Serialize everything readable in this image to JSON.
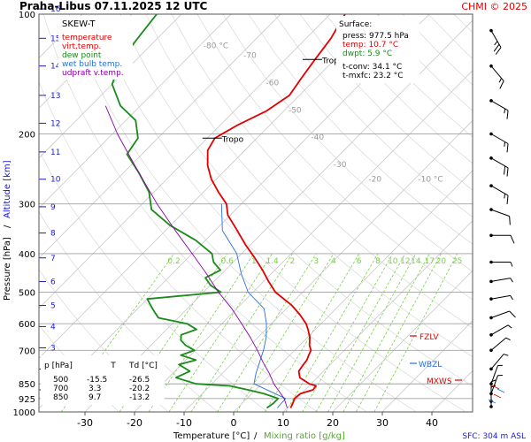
{
  "header": {
    "title": "Praha-Libus    07.11.2025 12 UTC",
    "credit": "CHMI © 2025",
    "legend_title": "SKEW-T"
  },
  "colors": {
    "temperature": "#e00000",
    "dew_point": "#1a8a1a",
    "wet_bulb": "#2a6fd6",
    "updraft": "#8b00a8",
    "isotherm": "#c8c8c8",
    "dry_adiabat": "#d8d8d8",
    "mixing_ratio": "#7bd14a",
    "altitude": "#1a1ad6",
    "grid": "#a0a0a0"
  },
  "legend": [
    {
      "label": "temperature",
      "color": "#e00000"
    },
    {
      "label": "virt.temp.",
      "color": "#e00000"
    },
    {
      "label": "dew point",
      "color": "#1a8a1a"
    },
    {
      "label": "wet bulb temp.",
      "color": "#2a6fd6"
    },
    {
      "label": "udpraft v.temp.",
      "color": "#8b00a8"
    }
  ],
  "surface": {
    "heading": "Surface:",
    "press": "press: 977.5 hPa",
    "temp": "temp: 10.7 °C",
    "dwpt": "dwpt: 5.9 °C",
    "tconv": "t-conv: 34.1 °C",
    "tmxfc": "t-mxfc: 23.2 °C"
  },
  "table": {
    "header": [
      "p [hPa]",
      "T",
      "Td [°C]"
    ],
    "rows": [
      [
        "500",
        "-15.5",
        "-26.5"
      ],
      [
        "700",
        "3.3",
        "-20.2"
      ],
      [
        "850",
        "9.7",
        "-13.2"
      ]
    ]
  },
  "levels": {
    "tropo_label": "Tropo",
    "fzlv": "FZLV",
    "wbzl": "WBZL",
    "mxws": "MXWS"
  },
  "axes": {
    "xlabel": "Temperature [°C]",
    "xlabel_sep": "/",
    "mixing_label": "Mixing ratio [g/kg]",
    "ylabel_pressure": "Pressure [hPa]",
    "ylabel_sep": "/",
    "ylabel_altitude": "Altitude [km]",
    "footer": "SFC: 304 m ASL"
  },
  "chart_data": {
    "type": "line",
    "title": "Praha-Libus 07.11.2025 12 UTC",
    "xlabel": "Temperature [°C] / Mixing ratio [g/kg]",
    "ylabel": "Pressure [hPa] / Altitude [km]",
    "x_ticks": [
      -30,
      -20,
      -10,
      0,
      10,
      20,
      30,
      40
    ],
    "pressure_ticks": [
      100,
      200,
      300,
      400,
      500,
      600,
      700,
      850,
      925,
      1000
    ],
    "altitude_ticks": [
      1,
      2,
      3,
      4,
      5,
      6,
      7,
      8,
      9,
      10,
      11,
      12,
      13,
      14,
      15,
      16
    ],
    "altitude_pressures": [
      880,
      780,
      690,
      610,
      540,
      470,
      410,
      355,
      305,
      260,
      222,
      188,
      160,
      135,
      115,
      97
    ],
    "isotherm_labels": [
      -80,
      -70,
      -60,
      -50,
      -40,
      -30,
      -20,
      -10
    ],
    "mixing_ratio_labels": [
      "0.2",
      "0.6",
      "1",
      "1.4",
      "2",
      "3",
      "4",
      "6",
      "8",
      "10",
      "12",
      "14",
      "17",
      "20",
      "25"
    ],
    "mixing_ratio_values": [
      0.2,
      0.6,
      1,
      1.4,
      2,
      3,
      4,
      6,
      8,
      10,
      12,
      14,
      17,
      20,
      25
    ],
    "tropopause_pressures": [
      130,
      205
    ],
    "series": [
      {
        "name": "temperature",
        "color": "#e00000",
        "points": [
          [
            977,
            10.7
          ],
          [
            950,
            10.2
          ],
          [
            925,
            9.6
          ],
          [
            900,
            9.8
          ],
          [
            880,
            11.6
          ],
          [
            860,
            11.4
          ],
          [
            850,
            9.7
          ],
          [
            820,
            6.5
          ],
          [
            790,
            5.0
          ],
          [
            760,
            4.6
          ],
          [
            740,
            4.4
          ],
          [
            720,
            3.8
          ],
          [
            700,
            3.3
          ],
          [
            680,
            2.0
          ],
          [
            650,
            0.5
          ],
          [
            620,
            -1.5
          ],
          [
            600,
            -3.0
          ],
          [
            570,
            -6.0
          ],
          [
            540,
            -9.5
          ],
          [
            500,
            -15.5
          ],
          [
            470,
            -19.0
          ],
          [
            440,
            -22.5
          ],
          [
            410,
            -26.5
          ],
          [
            380,
            -31.0
          ],
          [
            350,
            -35.5
          ],
          [
            320,
            -40.5
          ],
          [
            300,
            -43.0
          ],
          [
            280,
            -47.0
          ],
          [
            260,
            -51.0
          ],
          [
            240,
            -54.5
          ],
          [
            220,
            -57.5
          ],
          [
            205,
            -58.5
          ],
          [
            190,
            -56.5
          ],
          [
            175,
            -53.5
          ],
          [
            160,
            -52.0
          ],
          [
            145,
            -53.0
          ],
          [
            130,
            -54.0
          ],
          [
            115,
            -55.0
          ],
          [
            100,
            -57.0
          ]
        ]
      },
      {
        "name": "dew point",
        "color": "#1a8a1a",
        "points": [
          [
            977,
            5.9
          ],
          [
            950,
            6.3
          ],
          [
            925,
            6.3
          ],
          [
            900,
            2.5
          ],
          [
            880,
            -1.5
          ],
          [
            860,
            -6.0
          ],
          [
            850,
            -13.2
          ],
          [
            820,
            -18.5
          ],
          [
            790,
            -17.0
          ],
          [
            760,
            -20.5
          ],
          [
            740,
            -18.0
          ],
          [
            720,
            -22.0
          ],
          [
            700,
            -20.2
          ],
          [
            680,
            -23.0
          ],
          [
            660,
            -25.0
          ],
          [
            640,
            -26.0
          ],
          [
            620,
            -24.0
          ],
          [
            600,
            -27.0
          ],
          [
            580,
            -34.0
          ],
          [
            560,
            -36.0
          ],
          [
            540,
            -38.0
          ],
          [
            520,
            -40.0
          ],
          [
            500,
            -26.5
          ],
          [
            480,
            -30.0
          ],
          [
            460,
            -32.5
          ],
          [
            440,
            -31.0
          ],
          [
            420,
            -34.0
          ],
          [
            400,
            -36.0
          ],
          [
            370,
            -42.0
          ],
          [
            340,
            -50.0
          ],
          [
            310,
            -57.0
          ],
          [
            280,
            -61.0
          ],
          [
            250,
            -67.0
          ],
          [
            225,
            -73.0
          ],
          [
            205,
            -74.0
          ],
          [
            185,
            -78.0
          ],
          [
            170,
            -84.0
          ],
          [
            150,
            -90.0
          ],
          [
            130,
            -93.0
          ],
          [
            115,
            -94.0
          ],
          [
            100,
            -95.0
          ]
        ]
      },
      {
        "name": "wet bulb temp.",
        "color": "#2a6fd6",
        "points": [
          [
            977,
            8.0
          ],
          [
            925,
            7.8
          ],
          [
            850,
            -1.5
          ],
          [
            800,
            -3.2
          ],
          [
            750,
            -4.7
          ],
          [
            700,
            -6.3
          ],
          [
            650,
            -8.3
          ],
          [
            600,
            -11.0
          ],
          [
            550,
            -14.5
          ],
          [
            500,
            -21.0
          ],
          [
            450,
            -26.0
          ],
          [
            400,
            -31.0
          ],
          [
            350,
            -38.5
          ],
          [
            300,
            -44.0
          ]
        ]
      },
      {
        "name": "udpraft v.temp.",
        "color": "#8b00a8",
        "points": [
          [
            977,
            10.0
          ],
          [
            925,
            7.5
          ],
          [
            850,
            2.5
          ],
          [
            800,
            -0.5
          ],
          [
            750,
            -4.0
          ],
          [
            700,
            -7.5
          ],
          [
            650,
            -11.5
          ],
          [
            600,
            -16.0
          ],
          [
            550,
            -21.0
          ],
          [
            500,
            -27.0
          ],
          [
            450,
            -33.0
          ],
          [
            400,
            -40.0
          ],
          [
            350,
            -48.0
          ],
          [
            300,
            -57.0
          ],
          [
            250,
            -67.0
          ],
          [
            200,
            -79.0
          ],
          [
            170,
            -87.0
          ]
        ]
      }
    ],
    "wind_barbs": [
      {
        "p": 110,
        "dir": 330,
        "speed": 25
      },
      {
        "p": 135,
        "dir": 320,
        "speed": 15
      },
      {
        "p": 165,
        "dir": 300,
        "speed": 15
      },
      {
        "p": 200,
        "dir": 300,
        "speed": 15
      },
      {
        "p": 230,
        "dir": 300,
        "speed": 20
      },
      {
        "p": 270,
        "dir": 300,
        "speed": 15
      },
      {
        "p": 310,
        "dir": 290,
        "speed": 10
      },
      {
        "p": 360,
        "dir": 270,
        "speed": 10
      },
      {
        "p": 420,
        "dir": 270,
        "speed": 5
      },
      {
        "p": 470,
        "dir": 260,
        "speed": 5
      },
      {
        "p": 520,
        "dir": 260,
        "speed": 5
      },
      {
        "p": 580,
        "dir": 250,
        "speed": 10
      },
      {
        "p": 640,
        "dir": 240,
        "speed": 5
      },
      {
        "p": 700,
        "dir": 230,
        "speed": 5
      },
      {
        "p": 780,
        "dir": 220,
        "speed": 5
      },
      {
        "p": 850,
        "dir": 200,
        "speed": 5
      },
      {
        "p": 900,
        "dir": 200,
        "speed": 5
      },
      {
        "p": 940,
        "dir": 180,
        "speed": 5
      },
      {
        "p": 970,
        "dir": 180,
        "speed": 5
      }
    ]
  }
}
